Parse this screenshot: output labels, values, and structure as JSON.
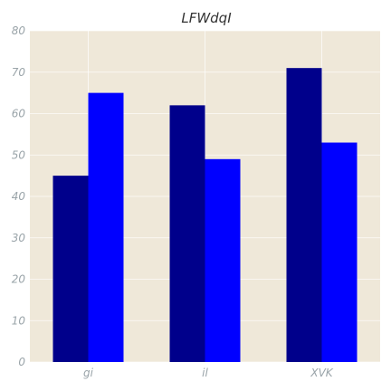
{
  "chart_data": {
    "type": "bar",
    "title": "LFWdqI",
    "categories": [
      "gi",
      "il",
      "XVK"
    ],
    "series": [
      {
        "values": [
          45,
          62,
          71
        ],
        "color": "#00008b"
      },
      {
        "values": [
          65,
          49,
          53
        ],
        "color": "#0000ff"
      }
    ],
    "ylim": [
      0,
      80
    ],
    "yticks": [
      0,
      10,
      20,
      30,
      40,
      50,
      60,
      70,
      80
    ],
    "grid": true,
    "background": "#efe8d9"
  }
}
